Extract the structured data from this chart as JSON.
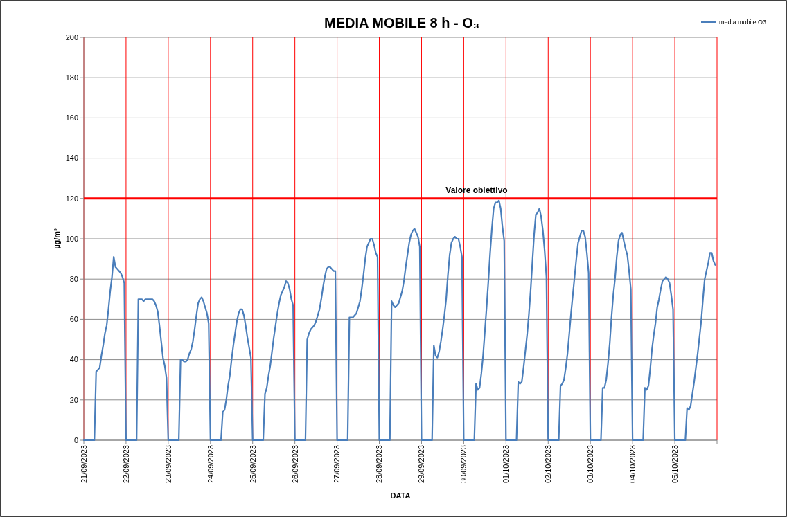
{
  "chart_data": {
    "type": "line",
    "title": "MEDIA MOBILE 8 h - O₃",
    "xlabel": "DATA",
    "ylabel": "µg/m³",
    "x": [
      "2023-09-21T00:00",
      "2023-09-21T06:00",
      "2023-09-21T07:00",
      "2023-09-21T08:00",
      "2023-09-21T09:00",
      "2023-09-21T10:00",
      "2023-09-21T11:00",
      "2023-09-21T12:00",
      "2023-09-21T13:00",
      "2023-09-21T14:00",
      "2023-09-21T15:00",
      "2023-09-21T16:00",
      "2023-09-21T17:00",
      "2023-09-21T18:00",
      "2023-09-21T19:00",
      "2023-09-21T20:00",
      "2023-09-21T21:00",
      "2023-09-21T22:00",
      "2023-09-21T23:00",
      "2023-09-22T00:00",
      "2023-09-22T06:00",
      "2023-09-22T07:00",
      "2023-09-22T08:00",
      "2023-09-22T09:00",
      "2023-09-22T10:00",
      "2023-09-22T11:00",
      "2023-09-22T12:00",
      "2023-09-22T13:00",
      "2023-09-22T14:00",
      "2023-09-22T15:00",
      "2023-09-22T16:00",
      "2023-09-22T17:00",
      "2023-09-22T18:00",
      "2023-09-22T19:00",
      "2023-09-22T20:00",
      "2023-09-22T21:00",
      "2023-09-22T22:00",
      "2023-09-22T23:00",
      "2023-09-23T00:00",
      "2023-09-23T06:00",
      "2023-09-23T07:00",
      "2023-09-23T08:00",
      "2023-09-23T09:00",
      "2023-09-23T10:00",
      "2023-09-23T11:00",
      "2023-09-23T12:00",
      "2023-09-23T13:00",
      "2023-09-23T14:00",
      "2023-09-23T15:00",
      "2023-09-23T16:00",
      "2023-09-23T17:00",
      "2023-09-23T18:00",
      "2023-09-23T19:00",
      "2023-09-23T20:00",
      "2023-09-23T21:00",
      "2023-09-23T22:00",
      "2023-09-23T23:00",
      "2023-09-24T00:00",
      "2023-09-24T06:00",
      "2023-09-24T07:00",
      "2023-09-24T08:00",
      "2023-09-24T09:00",
      "2023-09-24T10:00",
      "2023-09-24T11:00",
      "2023-09-24T12:00",
      "2023-09-24T13:00",
      "2023-09-24T14:00",
      "2023-09-24T15:00",
      "2023-09-24T16:00",
      "2023-09-24T17:00",
      "2023-09-24T18:00",
      "2023-09-24T19:00",
      "2023-09-24T20:00",
      "2023-09-24T21:00",
      "2023-09-24T22:00",
      "2023-09-24T23:00",
      "2023-09-25T00:00",
      "2023-09-25T06:00",
      "2023-09-25T07:00",
      "2023-09-25T08:00",
      "2023-09-25T09:00",
      "2023-09-25T10:00",
      "2023-09-25T11:00",
      "2023-09-25T12:00",
      "2023-09-25T13:00",
      "2023-09-25T14:00",
      "2023-09-25T15:00",
      "2023-09-25T16:00",
      "2023-09-25T17:00",
      "2023-09-25T18:00",
      "2023-09-25T19:00",
      "2023-09-25T20:00",
      "2023-09-25T21:00",
      "2023-09-25T22:00",
      "2023-09-25T23:00",
      "2023-09-26T00:00",
      "2023-09-26T06:00",
      "2023-09-26T07:00",
      "2023-09-26T08:00",
      "2023-09-26T09:00",
      "2023-09-26T10:00",
      "2023-09-26T11:00",
      "2023-09-26T12:00",
      "2023-09-26T13:00",
      "2023-09-26T14:00",
      "2023-09-26T15:00",
      "2023-09-26T16:00",
      "2023-09-26T17:00",
      "2023-09-26T18:00",
      "2023-09-26T19:00",
      "2023-09-26T20:00",
      "2023-09-26T21:00",
      "2023-09-26T22:00",
      "2023-09-26T23:00",
      "2023-09-27T00:00",
      "2023-09-27T06:00",
      "2023-09-27T07:00",
      "2023-09-27T08:00",
      "2023-09-27T09:00",
      "2023-09-27T10:00",
      "2023-09-27T11:00",
      "2023-09-27T12:00",
      "2023-09-27T13:00",
      "2023-09-27T14:00",
      "2023-09-27T15:00",
      "2023-09-27T16:00",
      "2023-09-27T17:00",
      "2023-09-27T18:00",
      "2023-09-27T19:00",
      "2023-09-27T20:00",
      "2023-09-27T21:00",
      "2023-09-27T22:00",
      "2023-09-27T23:00",
      "2023-09-28T00:00",
      "2023-09-28T06:00",
      "2023-09-28T07:00",
      "2023-09-28T08:00",
      "2023-09-28T09:00",
      "2023-09-28T10:00",
      "2023-09-28T11:00",
      "2023-09-28T12:00",
      "2023-09-28T13:00",
      "2023-09-28T14:00",
      "2023-09-28T15:00",
      "2023-09-28T16:00",
      "2023-09-28T17:00",
      "2023-09-28T18:00",
      "2023-09-28T19:00",
      "2023-09-28T20:00",
      "2023-09-28T21:00",
      "2023-09-28T22:00",
      "2023-09-28T23:00",
      "2023-09-29T00:00",
      "2023-09-29T06:00",
      "2023-09-29T07:00",
      "2023-09-29T08:00",
      "2023-09-29T09:00",
      "2023-09-29T10:00",
      "2023-09-29T11:00",
      "2023-09-29T12:00",
      "2023-09-29T13:00",
      "2023-09-29T14:00",
      "2023-09-29T15:00",
      "2023-09-29T16:00",
      "2023-09-29T17:00",
      "2023-09-29T18:00",
      "2023-09-29T19:00",
      "2023-09-29T20:00",
      "2023-09-29T21:00",
      "2023-09-29T22:00",
      "2023-09-29T23:00",
      "2023-09-30T00:00",
      "2023-09-30T06:00",
      "2023-09-30T07:00",
      "2023-09-30T08:00",
      "2023-09-30T09:00",
      "2023-09-30T10:00",
      "2023-09-30T11:00",
      "2023-09-30T12:00",
      "2023-09-30T13:00",
      "2023-09-30T14:00",
      "2023-09-30T15:00",
      "2023-09-30T16:00",
      "2023-09-30T17:00",
      "2023-09-30T18:00",
      "2023-09-30T19:00",
      "2023-09-30T20:00",
      "2023-09-30T21:00",
      "2023-09-30T22:00",
      "2023-09-30T23:00",
      "2023-10-01T00:00",
      "2023-10-01T06:00",
      "2023-10-01T07:00",
      "2023-10-01T08:00",
      "2023-10-01T09:00",
      "2023-10-01T10:00",
      "2023-10-01T11:00",
      "2023-10-01T12:00",
      "2023-10-01T13:00",
      "2023-10-01T14:00",
      "2023-10-01T15:00",
      "2023-10-01T16:00",
      "2023-10-01T17:00",
      "2023-10-01T18:00",
      "2023-10-01T19:00",
      "2023-10-01T20:00",
      "2023-10-01T21:00",
      "2023-10-01T22:00",
      "2023-10-01T23:00",
      "2023-10-02T00:00",
      "2023-10-02T06:00",
      "2023-10-02T07:00",
      "2023-10-02T08:00",
      "2023-10-02T09:00",
      "2023-10-02T10:00",
      "2023-10-02T11:00",
      "2023-10-02T12:00",
      "2023-10-02T13:00",
      "2023-10-02T14:00",
      "2023-10-02T15:00",
      "2023-10-02T16:00",
      "2023-10-02T17:00",
      "2023-10-02T18:00",
      "2023-10-02T19:00",
      "2023-10-02T20:00",
      "2023-10-02T21:00",
      "2023-10-02T22:00",
      "2023-10-02T23:00",
      "2023-10-03T00:00",
      "2023-10-03T06:00",
      "2023-10-03T07:00",
      "2023-10-03T08:00",
      "2023-10-03T09:00",
      "2023-10-03T10:00",
      "2023-10-03T11:00",
      "2023-10-03T12:00",
      "2023-10-03T13:00",
      "2023-10-03T14:00",
      "2023-10-03T15:00",
      "2023-10-03T16:00",
      "2023-10-03T17:00",
      "2023-10-03T18:00",
      "2023-10-03T19:00",
      "2023-10-03T20:00",
      "2023-10-03T21:00",
      "2023-10-03T22:00",
      "2023-10-03T23:00",
      "2023-10-04T00:00",
      "2023-10-04T06:00",
      "2023-10-04T07:00",
      "2023-10-04T08:00",
      "2023-10-04T09:00",
      "2023-10-04T10:00",
      "2023-10-04T11:00",
      "2023-10-04T12:00",
      "2023-10-04T13:00",
      "2023-10-04T14:00",
      "2023-10-04T15:00",
      "2023-10-04T16:00",
      "2023-10-04T17:00",
      "2023-10-04T18:00",
      "2023-10-04T19:00",
      "2023-10-04T20:00",
      "2023-10-04T21:00",
      "2023-10-04T22:00",
      "2023-10-04T23:00",
      "2023-10-05T00:00",
      "2023-10-05T06:00",
      "2023-10-05T07:00",
      "2023-10-05T08:00",
      "2023-10-05T09:00",
      "2023-10-05T10:00",
      "2023-10-05T11:00",
      "2023-10-05T12:00",
      "2023-10-05T13:00",
      "2023-10-05T14:00",
      "2023-10-05T15:00",
      "2023-10-05T16:00",
      "2023-10-05T17:00",
      "2023-10-05T18:00",
      "2023-10-05T19:00",
      "2023-10-05T20:00",
      "2023-10-05T21:00",
      "2023-10-05T22:00",
      "2023-10-05T23:00"
    ],
    "series": [
      {
        "name": "media mobile O3",
        "color": "#4a7ebb",
        "values": [
          0,
          0,
          34,
          35,
          36,
          42,
          47,
          53,
          57,
          65,
          74,
          81,
          91,
          86,
          85,
          84,
          83,
          81,
          78,
          0,
          0,
          70,
          70,
          70,
          69,
          70,
          70,
          70,
          70,
          70,
          69,
          67,
          64,
          57,
          49,
          41,
          37,
          31,
          0,
          0,
          40,
          40,
          39,
          39,
          40,
          43,
          45,
          49,
          55,
          62,
          68,
          70,
          71,
          69,
          66,
          63,
          58,
          0,
          0,
          14,
          15,
          20,
          27,
          32,
          40,
          47,
          53,
          59,
          63,
          65,
          65,
          62,
          57,
          51,
          46,
          41,
          0,
          0,
          23,
          26,
          32,
          37,
          44,
          51,
          57,
          63,
          68,
          72,
          74,
          76,
          79,
          78,
          75,
          70,
          67,
          0,
          0,
          50,
          53,
          55,
          56,
          57,
          59,
          62,
          65,
          70,
          76,
          81,
          85,
          86,
          86,
          85,
          84,
          84,
          0,
          0,
          61,
          61,
          61,
          62,
          63,
          66,
          69,
          75,
          82,
          90,
          96,
          98,
          100,
          100,
          97,
          93,
          91,
          0,
          0,
          69,
          67,
          66,
          67,
          68,
          71,
          74,
          79,
          86,
          92,
          98,
          102,
          104,
          105,
          103,
          101,
          96,
          0,
          0,
          47,
          42,
          41,
          44,
          49,
          55,
          62,
          70,
          82,
          92,
          98,
          100,
          101,
          100,
          100,
          96,
          91,
          0,
          0,
          28,
          25,
          26,
          33,
          42,
          54,
          66,
          79,
          93,
          105,
          115,
          118,
          118,
          119,
          115,
          106,
          99,
          0,
          0,
          29,
          28,
          29,
          36,
          44,
          52,
          62,
          74,
          88,
          102,
          112,
          113,
          115,
          111,
          104,
          94,
          81,
          0,
          0,
          27,
          28,
          30,
          36,
          43,
          53,
          63,
          72,
          81,
          90,
          98,
          101,
          104,
          104,
          101,
          93,
          83,
          0,
          0,
          26,
          26,
          30,
          38,
          48,
          61,
          72,
          80,
          91,
          99,
          102,
          103,
          99,
          95,
          92,
          84,
          75,
          0,
          0,
          26,
          25,
          27,
          35,
          45,
          52,
          58,
          66,
          70,
          75,
          79,
          80,
          81,
          80,
          78,
          72,
          65,
          0,
          0,
          16,
          15,
          17,
          23,
          29,
          36,
          43,
          51,
          59,
          70,
          80,
          84,
          88,
          93,
          93,
          89,
          87
        ]
      }
    ],
    "xlim": [
      "2023-09-21",
      "2023-10-06"
    ],
    "xticks": [
      {
        "value": "2023-09-21",
        "label": "21/09/2023"
      },
      {
        "value": "2023-09-22",
        "label": "22/09/2023"
      },
      {
        "value": "2023-09-23",
        "label": "23/09/2023"
      },
      {
        "value": "2023-09-24",
        "label": "24/09/2023"
      },
      {
        "value": "2023-09-25",
        "label": "25/09/2023"
      },
      {
        "value": "2023-09-26",
        "label": "26/09/2023"
      },
      {
        "value": "2023-09-27",
        "label": "27/09/2023"
      },
      {
        "value": "2023-09-28",
        "label": "28/09/2023"
      },
      {
        "value": "2023-09-29",
        "label": "29/09/2023"
      },
      {
        "value": "2023-09-30",
        "label": "30/09/2023"
      },
      {
        "value": "2023-10-01",
        "label": "01/10/2023"
      },
      {
        "value": "2023-10-02",
        "label": "02/10/2023"
      },
      {
        "value": "2023-10-03",
        "label": "03/10/2023"
      },
      {
        "value": "2023-10-04",
        "label": "04/10/2023"
      },
      {
        "value": "2023-10-05",
        "label": "05/10/2023"
      },
      {
        "value": "2023-10-06",
        "label": null
      }
    ],
    "ylim": [
      0,
      200
    ],
    "yticks": [
      0,
      20,
      40,
      60,
      80,
      100,
      120,
      140,
      160,
      180,
      200
    ],
    "grid": true,
    "legend": "top right",
    "marker": "none",
    "line_style": "solid",
    "ref_lines": [
      {
        "axis": "y",
        "value": 120,
        "label": "Valore obiettivo",
        "color": "#ff0000"
      }
    ]
  }
}
